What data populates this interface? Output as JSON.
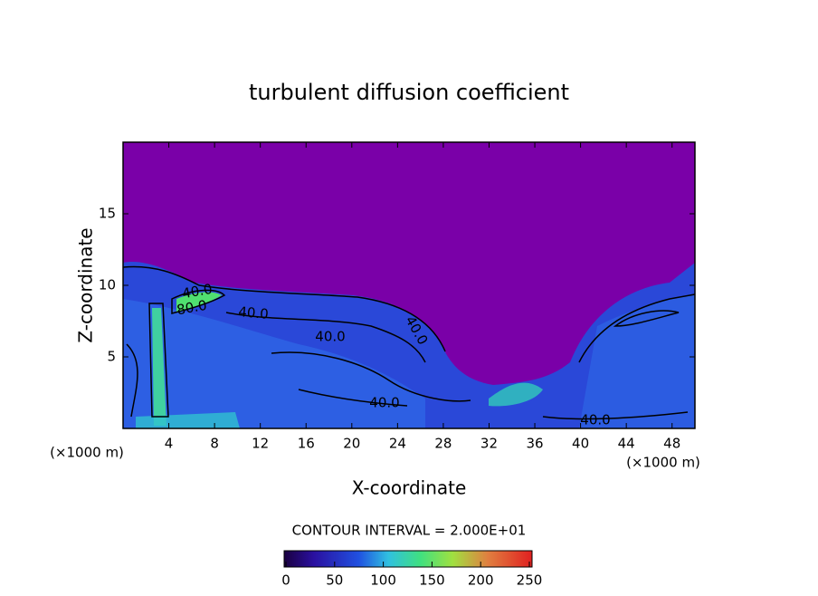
{
  "chart_data": {
    "type": "contour",
    "title": "turbulent diffusion coefficient",
    "x_label": "X-coordinate",
    "y_label": "Z-coordinate",
    "x_unit_left": "(×1000 m)",
    "x_unit_right": "(×1000 m)",
    "xlim": [
      0,
      50
    ],
    "xticks": [
      4,
      8,
      12,
      16,
      20,
      24,
      28,
      32,
      36,
      40,
      44,
      48
    ],
    "ylim": [
      0,
      20
    ],
    "yticks": [
      5,
      10,
      15
    ],
    "contour_note": "CONTOUR INTERVAL = 2.000E+01",
    "contour_labels": [
      "40.0",
      "80.0",
      "40.0",
      "40.0",
      "40.0",
      "40.0",
      "40.0"
    ],
    "colorbar_lim": [
      0,
      250
    ],
    "colorbar_ticks": [
      0,
      50,
      100,
      150,
      200,
      250
    ]
  }
}
